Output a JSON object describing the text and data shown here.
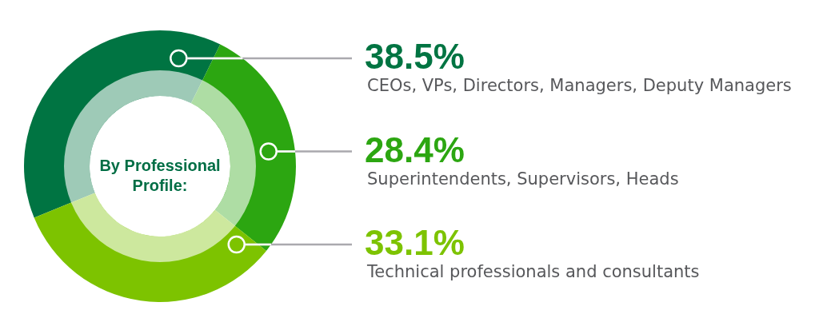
{
  "chart_data": {
    "type": "donut",
    "title": "By Professional Profile:",
    "categories": [
      "CEOs, VPs, Directors, Managers, Deputy Managers",
      "Superintendents, Supervisors, Heads",
      "Technical professionals and consultants"
    ],
    "values": [
      38.5,
      28.4,
      33.1
    ],
    "colors": [
      "#007442",
      "#2ca611",
      "#7dc300"
    ],
    "value_labels": [
      "38.5%",
      "28.4%",
      "33.1%"
    ]
  }
}
